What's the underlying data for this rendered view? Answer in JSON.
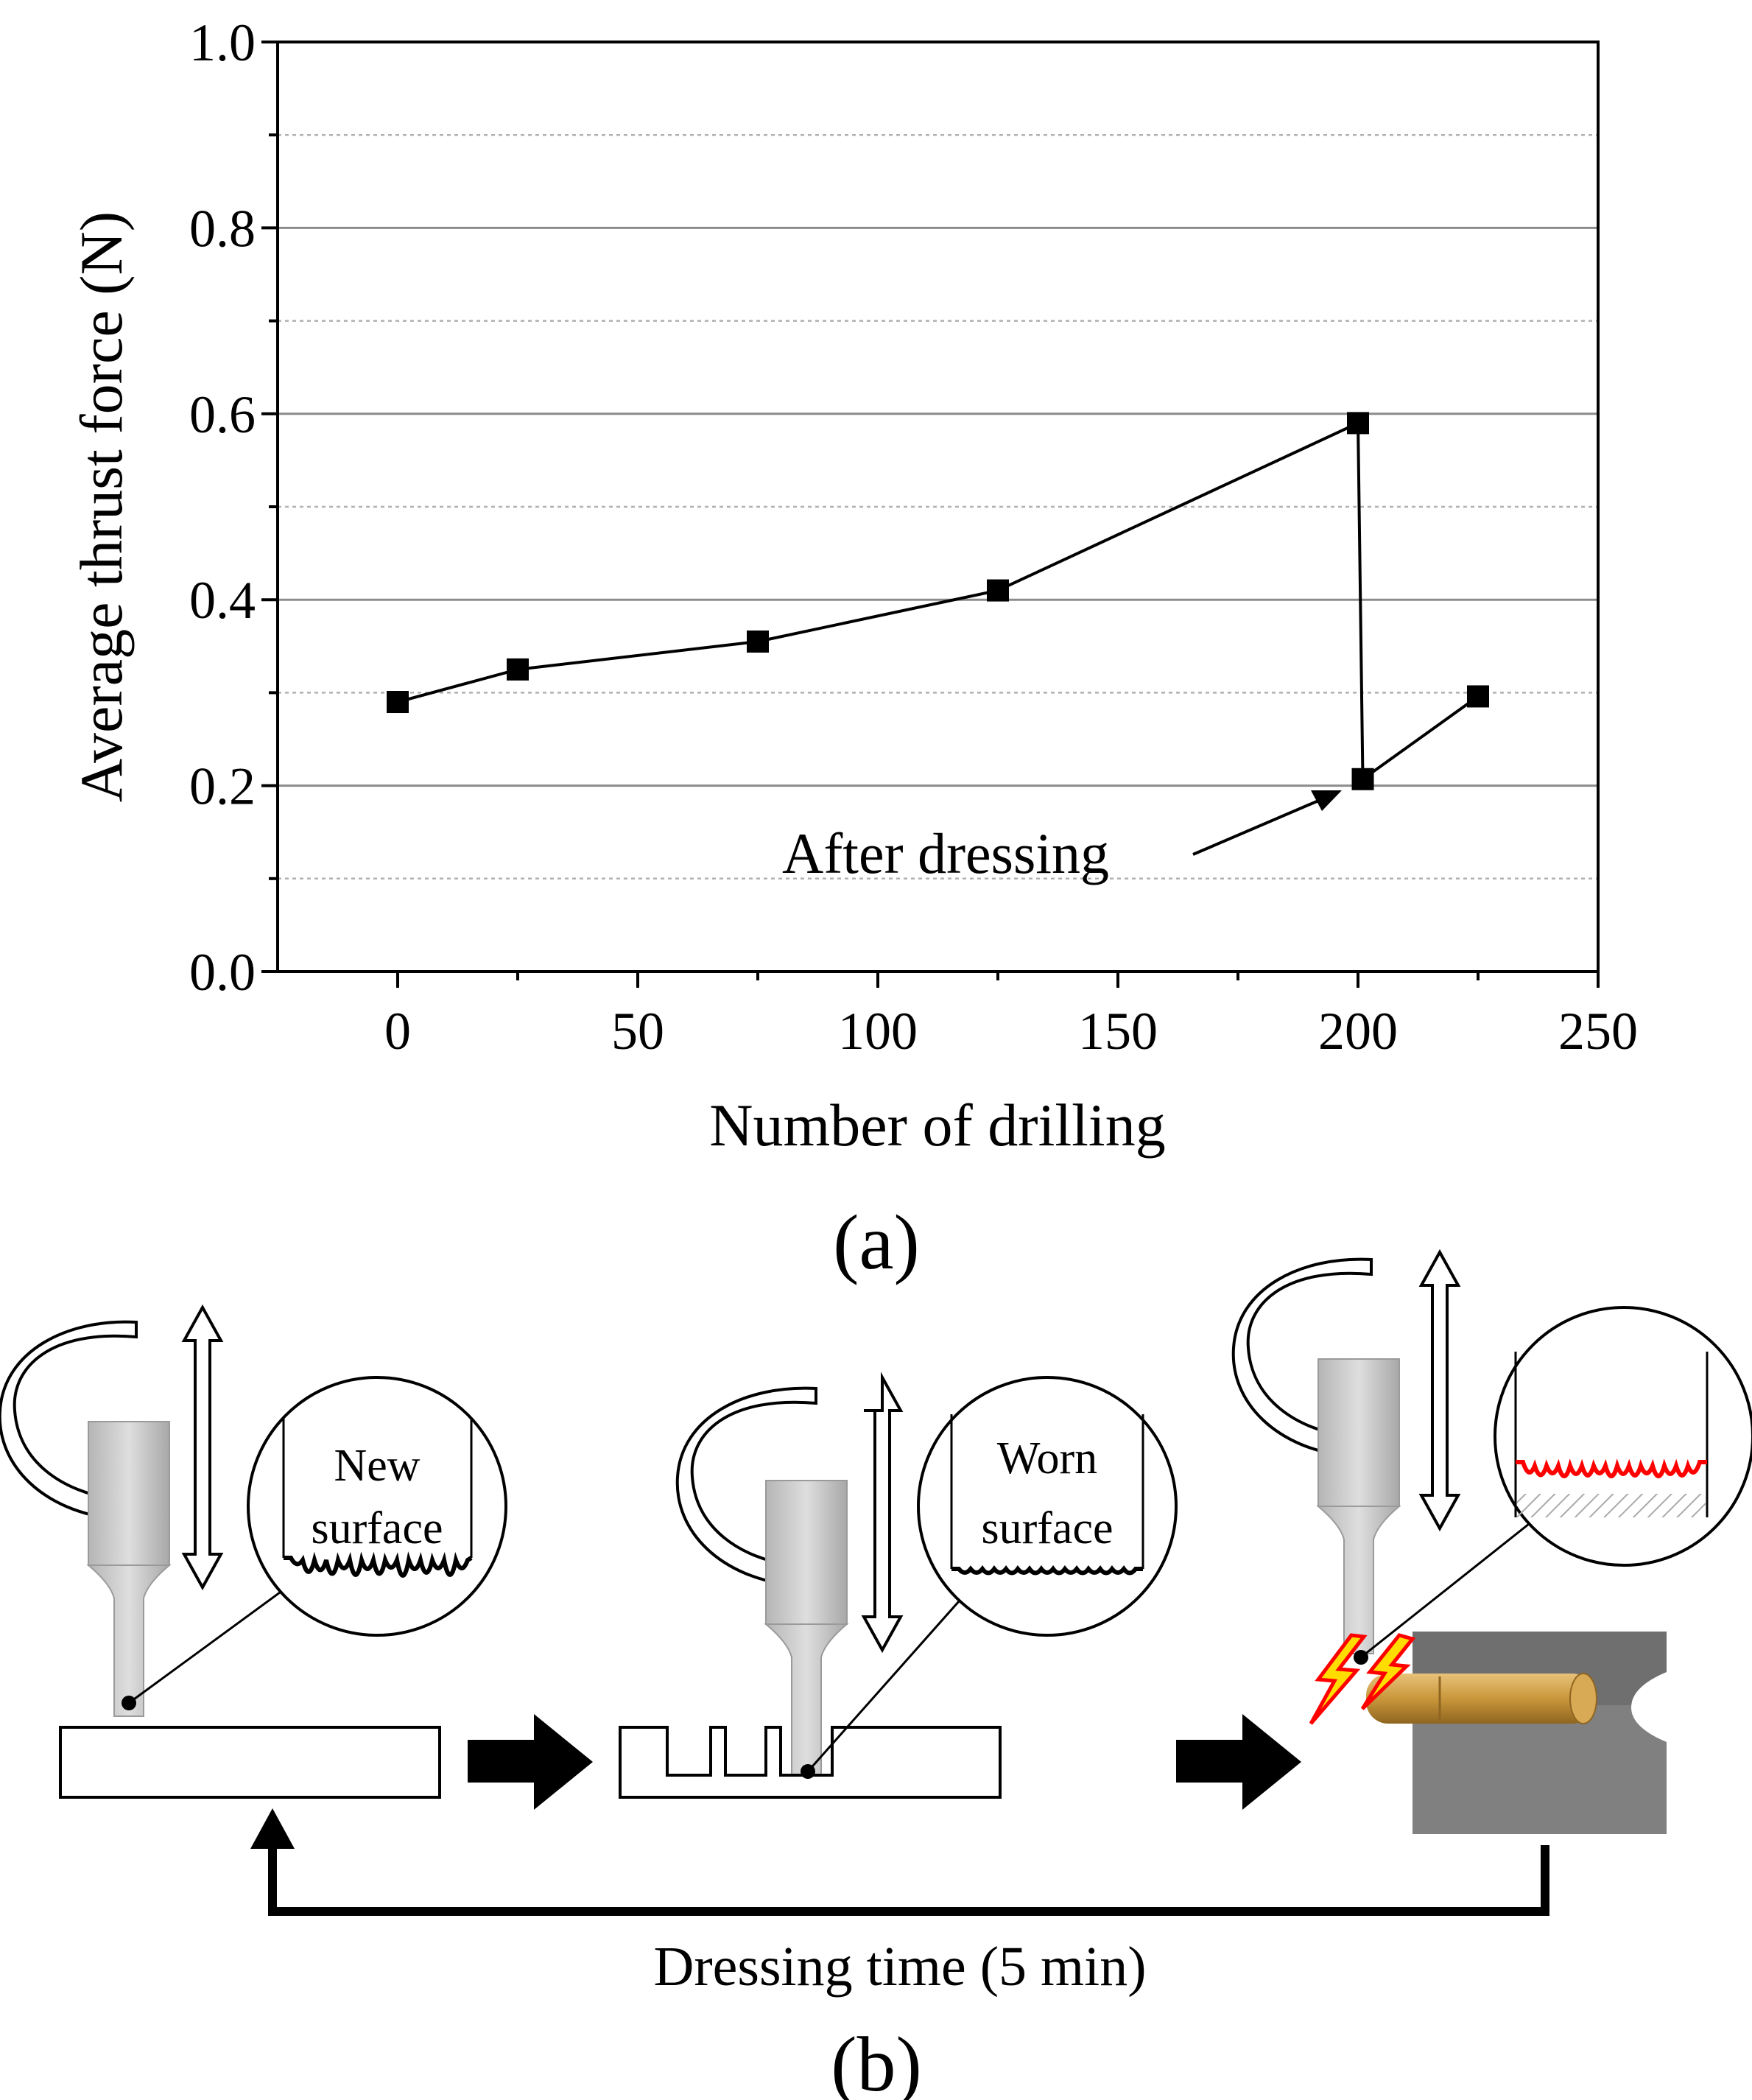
{
  "chart_data": {
    "type": "line",
    "title": "",
    "xlabel": "Number of drilling",
    "ylabel": "Average thrust force (N)",
    "xlim": [
      -25,
      250
    ],
    "ylim": [
      0.0,
      1.0
    ],
    "x_ticks": [
      0,
      50,
      100,
      150,
      200,
      250
    ],
    "x_tick_labels": [
      "0",
      "50",
      "100",
      "150",
      "200",
      "250"
    ],
    "y_ticks": [
      0.0,
      0.2,
      0.4,
      0.6,
      0.8,
      1.0
    ],
    "y_tick_labels": [
      "0.0",
      "0.2",
      "0.4",
      "0.6",
      "0.8",
      "1.0"
    ],
    "major_grid": [
      0.2,
      0.4,
      0.6,
      0.8
    ],
    "minor_grid": [
      0.1,
      0.3,
      0.5,
      0.7,
      0.9
    ],
    "series": [
      {
        "name": "Average thrust force",
        "marker": "square",
        "color": "#000000",
        "x": [
          0,
          25,
          75,
          125,
          200,
          201,
          225
        ],
        "y": [
          0.29,
          0.325,
          0.355,
          0.41,
          0.59,
          0.207,
          0.296
        ]
      }
    ],
    "annotation": {
      "text": "After dressing",
      "target_x": 201,
      "target_y": 0.207
    },
    "panel_label": "(a)"
  },
  "diagram": {
    "callout_1": [
      "New",
      "surface"
    ],
    "callout_2": [
      "Worn",
      "surface"
    ],
    "return_label": "Dressing time (5 min)",
    "panel_label": "(b)",
    "colors": {
      "tool": "#c8c8c8",
      "tool_edge": "#8a8a8a",
      "worn_surface": "#ff0000",
      "spark_fill": "#ffdd00",
      "spark_edge": "#ff0000",
      "rod": "#c9973b",
      "dresser_block": "#7f7f7f"
    }
  }
}
